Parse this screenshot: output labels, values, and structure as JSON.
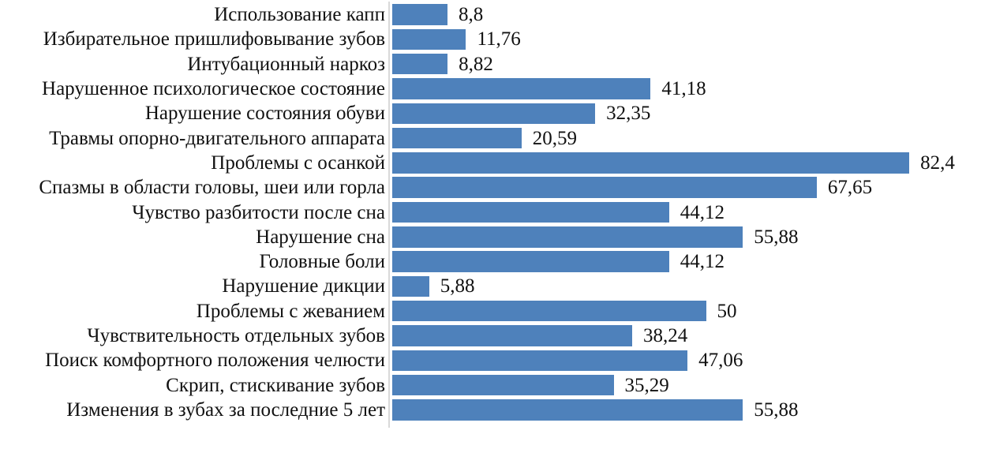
{
  "chart_data": {
    "type": "bar",
    "orientation": "horizontal",
    "title": "",
    "categories": [
      "Использование капп",
      "Избирательное пришлифовывание зубов",
      "Интубационный наркоз",
      "Нарушенное психологическое состояние",
      "Нарушение состояния обуви",
      "Травмы опорно-двигательного аппарата",
      "Проблемы с осанкой",
      "Спазмы в области головы, шеи или горла",
      "Чувство разбитости после сна",
      "Нарушение сна",
      "Головные боли",
      "Нарушение дикции",
      "Проблемы с жеванием",
      "Чувствительность отдельных зубов",
      "Поиск комфортного положения челюсти",
      "Скрип, стискивание зубов",
      "Изменения в зубах за последние 5 лет"
    ],
    "values": [
      8.8,
      11.76,
      8.82,
      41.18,
      32.35,
      20.59,
      82.4,
      67.65,
      44.12,
      55.88,
      44.12,
      5.88,
      50,
      38.24,
      47.06,
      35.29,
      55.88
    ],
    "value_labels": [
      "8,8",
      "11,76",
      "8,82",
      "41,18",
      "32,35",
      "20,59",
      "82,4",
      "67,65",
      "44,12",
      "55,88",
      "44,12",
      "5,88",
      "50",
      "38,24",
      "47,06",
      "35,29",
      "55,88"
    ],
    "xlabel": "",
    "ylabel": "",
    "xlim": [
      0,
      93
    ],
    "grid": false,
    "legend": "none",
    "data_labels_position": "outside-end",
    "decimal_separator": ",",
    "bar_color": "#4e81bb",
    "axis_line_color": "#d9d9d9",
    "text_color": "#111111",
    "background_color": "#ffffff"
  }
}
